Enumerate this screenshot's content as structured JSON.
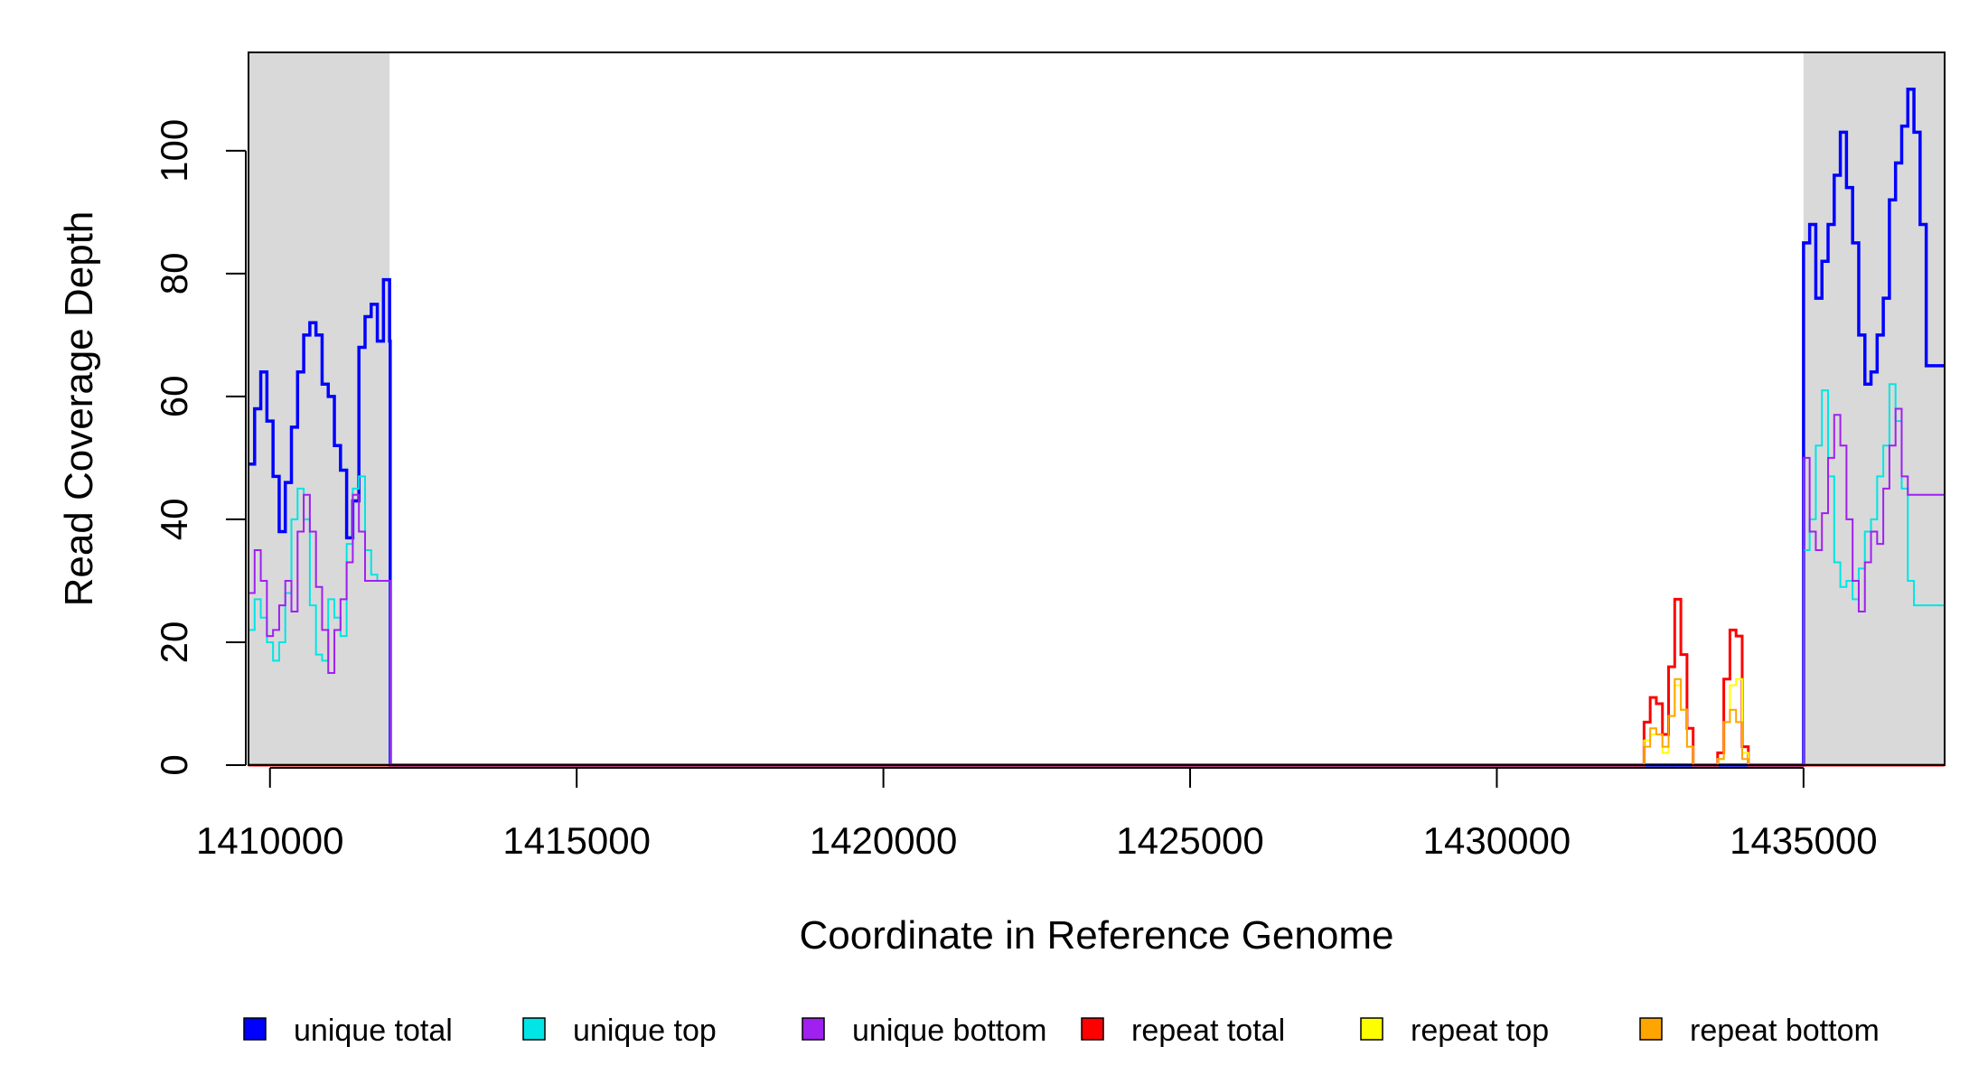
{
  "chart_data": {
    "type": "line",
    "title": "",
    "xlabel": "Coordinate in Reference Genome",
    "ylabel": "Read Coverage Depth",
    "xlim": [
      1409650,
      1437300
    ],
    "ylim": [
      0,
      116
    ],
    "x_ticks": [
      1410000,
      1415000,
      1420000,
      1425000,
      1430000,
      1435000
    ],
    "x_tick_labels": [
      "1410000",
      "1415000",
      "1420000",
      "1425000",
      "1430000",
      "1435000"
    ],
    "y_ticks": [
      0,
      20,
      40,
      60,
      80,
      100
    ],
    "y_tick_labels": [
      "0",
      "20",
      "40",
      "60",
      "80",
      "100"
    ],
    "grid": false,
    "legend_position": "bottom",
    "shaded_regions": [
      {
        "x0": 1409650,
        "x1": 1411950,
        "color": "#d9d9d9"
      },
      {
        "x0": 1435000,
        "x1": 1437300,
        "color": "#d9d9d9"
      }
    ],
    "series": [
      {
        "name": "unique total",
        "color": "#0000ff",
        "x": [
          1409650,
          1409750,
          1409850,
          1409950,
          1410050,
          1410150,
          1410250,
          1410350,
          1410450,
          1410550,
          1410650,
          1410750,
          1410850,
          1410950,
          1411050,
          1411150,
          1411250,
          1411350,
          1411450,
          1411550,
          1411650,
          1411750,
          1411850,
          1411950,
          1411960,
          1432300,
          1432400,
          1434950,
          1435000,
          1435100,
          1435200,
          1435300,
          1435400,
          1435500,
          1435600,
          1435700,
          1435800,
          1435900,
          1436000,
          1436100,
          1436200,
          1436300,
          1436400,
          1436500,
          1436600,
          1436700,
          1436800,
          1436900,
          1437000,
          1437100,
          1437200,
          1437300
        ],
        "y": [
          49,
          58,
          64,
          56,
          47,
          38,
          46,
          55,
          64,
          70,
          72,
          70,
          62,
          60,
          52,
          48,
          37,
          43,
          68,
          73,
          75,
          69,
          79,
          69,
          0,
          0,
          0,
          0,
          85,
          88,
          76,
          82,
          88,
          96,
          103,
          94,
          85,
          70,
          62,
          64,
          70,
          76,
          92,
          98,
          104,
          110,
          103,
          88,
          65,
          65,
          65,
          65
        ]
      },
      {
        "name": "unique top",
        "color": "#00e5e5",
        "x": [
          1409650,
          1409750,
          1409850,
          1409950,
          1410050,
          1410150,
          1410250,
          1410350,
          1410450,
          1410550,
          1410650,
          1410750,
          1410850,
          1410950,
          1411050,
          1411150,
          1411250,
          1411350,
          1411450,
          1411550,
          1411650,
          1411750,
          1411850,
          1411950,
          1411960,
          1434950,
          1435000,
          1435100,
          1435200,
          1435300,
          1435400,
          1435500,
          1435600,
          1435700,
          1435800,
          1435900,
          1436000,
          1436100,
          1436200,
          1436300,
          1436400,
          1436500,
          1436600,
          1436700,
          1436800,
          1436900,
          1437000,
          1437100,
          1437200,
          1437300
        ],
        "y": [
          22,
          27,
          24,
          20,
          17,
          20,
          28,
          40,
          45,
          40,
          26,
          18,
          17,
          27,
          24,
          21,
          36,
          45,
          47,
          35,
          31,
          30,
          30,
          30,
          0,
          0,
          35,
          40,
          52,
          61,
          47,
          33,
          29,
          30,
          27,
          32,
          38,
          40,
          47,
          52,
          62,
          56,
          45,
          30,
          26,
          26,
          26,
          26,
          26,
          26
        ]
      },
      {
        "name": "unique bottom",
        "color": "#a020f0",
        "x": [
          1409650,
          1409750,
          1409850,
          1409950,
          1410050,
          1410150,
          1410250,
          1410350,
          1410450,
          1410550,
          1410650,
          1410750,
          1410850,
          1410950,
          1411050,
          1411150,
          1411250,
          1411350,
          1411450,
          1411550,
          1411650,
          1411750,
          1411850,
          1411950,
          1411960,
          1434950,
          1435000,
          1435100,
          1435200,
          1435300,
          1435400,
          1435500,
          1435600,
          1435700,
          1435800,
          1435900,
          1436000,
          1436100,
          1436200,
          1436300,
          1436400,
          1436500,
          1436600,
          1436700,
          1436800,
          1436900,
          1437000,
          1437100,
          1437200,
          1437300
        ],
        "y": [
          28,
          35,
          30,
          21,
          22,
          26,
          30,
          25,
          38,
          44,
          38,
          29,
          22,
          15,
          22,
          27,
          33,
          44,
          38,
          30,
          30,
          30,
          30,
          30,
          0,
          0,
          50,
          38,
          35,
          41,
          50,
          57,
          52,
          40,
          30,
          25,
          33,
          38,
          36,
          45,
          52,
          58,
          47,
          44,
          44,
          44,
          44,
          44,
          44,
          44
        ]
      },
      {
        "name": "repeat total",
        "color": "#ff0000",
        "x": [
          1409650,
          1432300,
          1432400,
          1432500,
          1432600,
          1432700,
          1432800,
          1432900,
          1433000,
          1433100,
          1433200,
          1433300,
          1433400,
          1433500,
          1433600,
          1433700,
          1433800,
          1433900,
          1434000,
          1434100,
          1434200,
          1437300
        ],
        "y": [
          0,
          0,
          7,
          11,
          10,
          5,
          16,
          27,
          18,
          6,
          0,
          0,
          0,
          0,
          2,
          14,
          22,
          21,
          3,
          0,
          0,
          0
        ]
      },
      {
        "name": "repeat top",
        "color": "#ffff00",
        "x": [
          1409650,
          1432300,
          1432400,
          1432500,
          1432600,
          1432700,
          1432800,
          1432900,
          1433000,
          1433100,
          1433200,
          1433300,
          1433400,
          1433500,
          1433600,
          1433700,
          1433800,
          1433900,
          1434000,
          1434100,
          1434200,
          1437300
        ],
        "y": [
          0,
          0,
          4,
          5,
          5,
          2,
          8,
          13,
          9,
          3,
          0,
          0,
          0,
          0,
          1,
          7,
          13,
          14,
          2,
          0,
          0,
          0
        ]
      },
      {
        "name": "repeat bottom",
        "color": "#ffa500",
        "x": [
          1409650,
          1432300,
          1432400,
          1432500,
          1432600,
          1432700,
          1432800,
          1432900,
          1433000,
          1433100,
          1433200,
          1433300,
          1433400,
          1433500,
          1433600,
          1433700,
          1433800,
          1433900,
          1434000,
          1434100,
          1434200,
          1437300
        ],
        "y": [
          0,
          0,
          3,
          6,
          5,
          3,
          8,
          14,
          9,
          3,
          0,
          0,
          0,
          0,
          1,
          7,
          9,
          7,
          1,
          0,
          0,
          0
        ]
      }
    ]
  }
}
